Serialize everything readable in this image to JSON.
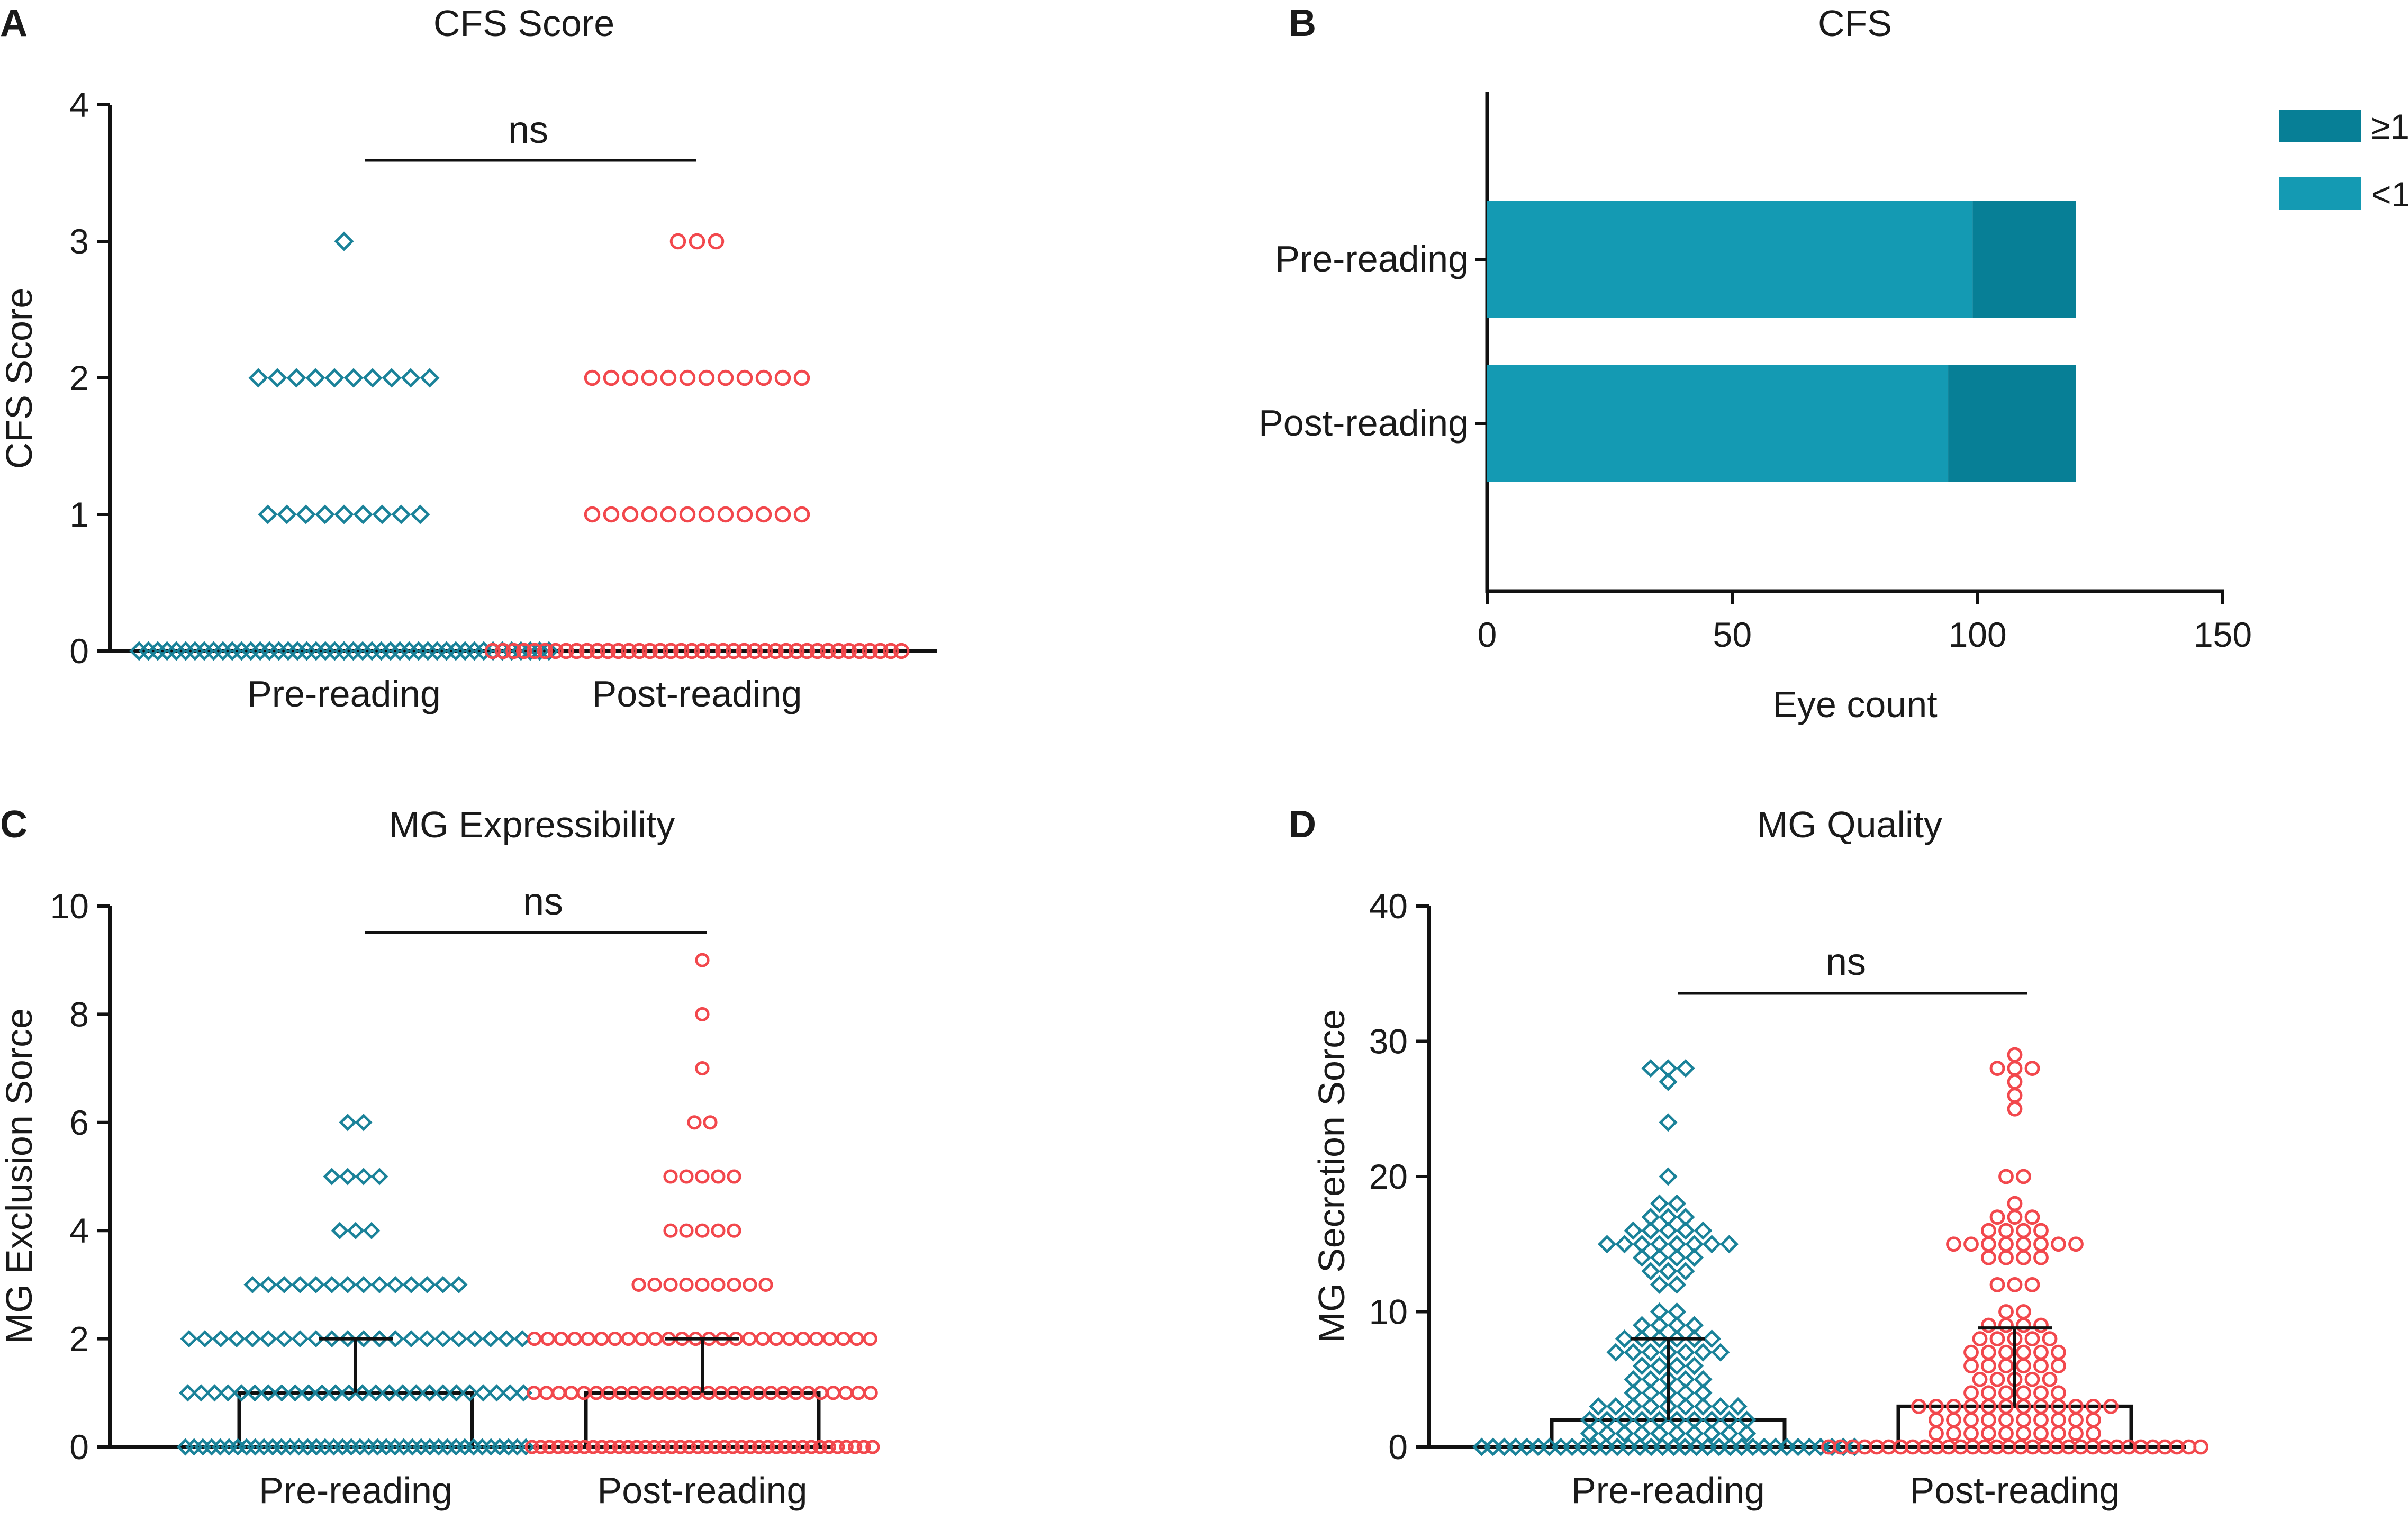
{
  "chart_data": [
    {
      "panel": "A",
      "type": "scatter",
      "title": "CFS Score",
      "ylabel": "CFS Score",
      "xlabel": "",
      "ylim": [
        0,
        4
      ],
      "yticks": [
        "0",
        "1",
        "2",
        "3",
        "4"
      ],
      "categories": [
        "Pre-reading",
        "Post-reading"
      ],
      "colors": {
        "Pre-reading": "#1a8299",
        "Post-reading": "#f2484d"
      },
      "markers": {
        "Pre-reading": "diamond",
        "Post-reading": "circle"
      },
      "groups": [
        {
          "name": "Pre-reading",
          "counts": {
            "0": 45,
            "1": 9,
            "2": 10,
            "3": 1
          }
        },
        {
          "name": "Post-reading",
          "counts": {
            "0": 40,
            "1": 12,
            "2": 12,
            "3": 3
          }
        }
      ],
      "significance": "ns"
    },
    {
      "panel": "B",
      "type": "bar",
      "orientation": "horizontal",
      "stacked": true,
      "title": "CFS",
      "xlabel": "Eye count",
      "ylabel": "",
      "xlim": [
        0,
        150
      ],
      "xticks": [
        "0",
        "50",
        "100",
        "150"
      ],
      "categories": [
        "Pre-reading",
        "Post-reading"
      ],
      "series": [
        {
          "name": "<1",
          "color": "#149ab3",
          "values": [
            99,
            94
          ]
        },
        {
          "name": "≥1",
          "color": "#077f96",
          "values": [
            21,
            26
          ]
        }
      ],
      "legend": [
        "≥1",
        "<1"
      ],
      "legend_position": "top-right"
    },
    {
      "panel": "C",
      "type": "scatter",
      "title": "MG Expressibility",
      "ylabel": "MG Exclusion Sorce",
      "xlabel": "",
      "ylim": [
        0,
        10
      ],
      "yticks": [
        "0",
        "2",
        "4",
        "6",
        "8",
        "10"
      ],
      "categories": [
        "Pre-reading",
        "Post-reading"
      ],
      "bars": [
        {
          "name": "Pre-reading",
          "median": 1,
          "err_low": 0,
          "err_high": 2
        },
        {
          "name": "Post-reading",
          "median": 1,
          "err_low": 0,
          "err_high": 2
        }
      ],
      "groups": [
        {
          "name": "Pre-reading",
          "counts": {
            "0": 40,
            "1": 26,
            "2": 22,
            "3": 14,
            "4": 3,
            "5": 4,
            "6": 2
          }
        },
        {
          "name": "Post-reading",
          "counts": {
            "0": 40,
            "1": 28,
            "2": 26,
            "3": 9,
            "4": 5,
            "5": 5,
            "6": 2,
            "7": 1,
            "8": 1,
            "9": 1
          }
        }
      ],
      "significance": "ns"
    },
    {
      "panel": "D",
      "type": "scatter",
      "title": "MG Quality",
      "ylabel": "MG Secretion Sorce",
      "xlabel": "",
      "ylim": [
        0,
        40
      ],
      "yticks": [
        "0",
        "10",
        "20",
        "30",
        "40"
      ],
      "categories": [
        "Pre-reading",
        "Post-reading"
      ],
      "bars": [
        {
          "name": "Pre-reading",
          "median": 2,
          "err_low": 0,
          "err_high": 8
        },
        {
          "name": "Post-reading",
          "median": 3,
          "err_low": 0,
          "err_high": 8.8
        }
      ],
      "groups": [
        {
          "name": "Pre-reading",
          "counts": {
            "0": 34,
            "1": 10,
            "2": 10,
            "3": 9,
            "4": 5,
            "5": 5,
            "6": 4,
            "7": 7,
            "8": 6,
            "9": 4,
            "10": 2,
            "12": 2,
            "13": 3,
            "14": 4,
            "15": 8,
            "16": 5,
            "17": 3,
            "18": 2,
            "20": 1,
            "24": 1,
            "27": 1,
            "28": 3
          }
        },
        {
          "name": "Post-reading",
          "counts": {
            "0": 32,
            "1": 10,
            "2": 10,
            "3": 12,
            "4": 6,
            "5": 5,
            "6": 6,
            "7": 6,
            "8": 5,
            "9": 4,
            "10": 2,
            "12": 3,
            "14": 4,
            "15": 8,
            "16": 4,
            "17": 3,
            "18": 1,
            "20": 2,
            "25": 1,
            "26": 1,
            "27": 1,
            "28": 3,
            "29": 1
          }
        }
      ],
      "significance": "ns"
    }
  ]
}
